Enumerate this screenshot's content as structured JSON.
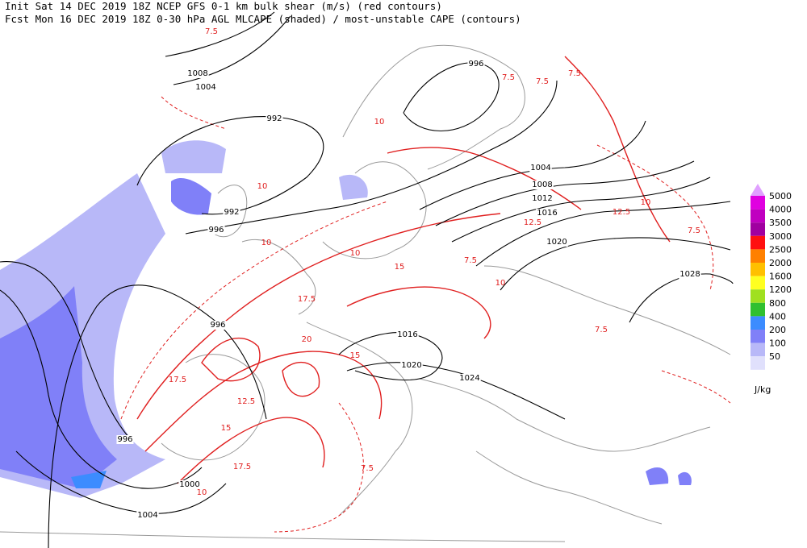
{
  "header": {
    "line1": "Init  Sat 14 DEC 2019 18Z  NCEP GFS 0-1 km bulk shear (m/s) (red contours)",
    "line2": "Fcst Mon 16 DEC 2019 18Z  0-30 hPa AGL MLCAPE (shaded) / most-unstable CAPE (contours)"
  },
  "legend": {
    "levels": [
      {
        "value": 5000,
        "color": "#e000e0"
      },
      {
        "value": 4000,
        "color": "#c000c0"
      },
      {
        "value": 3500,
        "color": "#a000a0"
      },
      {
        "value": 3000,
        "color": "#ff1010"
      },
      {
        "value": 2500,
        "color": "#ff8000"
      },
      {
        "value": 2000,
        "color": "#ffc000"
      },
      {
        "value": 1600,
        "color": "#ffff20"
      },
      {
        "value": 1200,
        "color": "#a0e020"
      },
      {
        "value": 800,
        "color": "#30c030"
      },
      {
        "value": 400,
        "color": "#3c8cff"
      },
      {
        "value": 200,
        "color": "#8080f8"
      },
      {
        "value": 100,
        "color": "#b8b8f8"
      },
      {
        "value": 50,
        "color": "#e0e0fc"
      }
    ],
    "unit": "J/kg"
  },
  "isobar_labels": [
    "1008",
    "1004",
    "992",
    "996",
    "1004",
    "1008",
    "1012",
    "1016",
    "1020",
    "1028",
    "992",
    "996",
    "996",
    "1016",
    "1020",
    "1024",
    "996",
    "1000",
    "1004"
  ],
  "shear_labels": [
    "7.5",
    "7.5",
    "7.5",
    "7.5",
    "10",
    "12.5",
    "10",
    "7.5",
    "10",
    "15",
    "17.5",
    "20",
    "15",
    "17.5",
    "10",
    "12.5",
    "15",
    "17.5",
    "10",
    "7.5",
    "10",
    "12.5",
    "7.5",
    "7.5",
    "10"
  ]
}
